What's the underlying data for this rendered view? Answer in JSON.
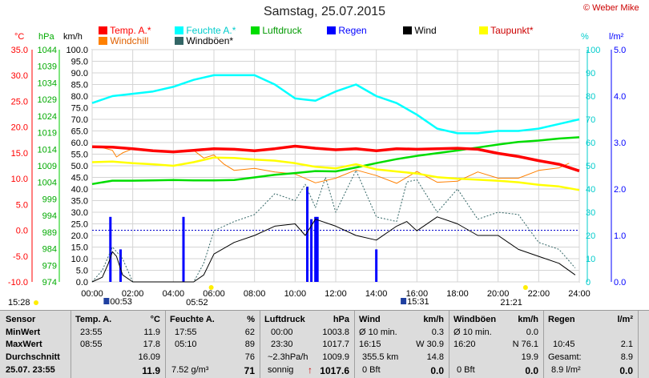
{
  "title": "Samstag, 25.07.2015",
  "copyright": "© Weber Mike",
  "axis_units": {
    "temp": "°C",
    "hpa": "hPa",
    "kmh": "km/h",
    "pct": "%",
    "rain": "l/m²"
  },
  "legend": [
    {
      "label": "Temp. A.*",
      "color": "#ff0000"
    },
    {
      "label": "Feuchte A.*",
      "color": "#00ffff"
    },
    {
      "label": "Luftdruck",
      "color": "#00dd00"
    },
    {
      "label": "Regen",
      "color": "#0000ff"
    },
    {
      "label": "Wind",
      "color": "#000000"
    },
    {
      "label": "Taupunkt*",
      "color": "#ffff00"
    },
    {
      "label": "Windchill",
      "color": "#ff8000"
    },
    {
      "label": "Windböen*",
      "color": "#336666"
    }
  ],
  "sun": {
    "rise_time": "05:52",
    "set_time": "21:21",
    "left_time": "15:28"
  },
  "moon": {
    "rise_time": "00:53",
    "set_time": "15:31"
  },
  "chart_data": {
    "type": "line",
    "x_unit": "time of day",
    "xlim": [
      "00:00",
      "24:00"
    ],
    "x_ticks": [
      "00:00",
      "02:00",
      "04:00",
      "06:00",
      "08:00",
      "10:00",
      "12:00",
      "14:00",
      "16:00",
      "18:00",
      "20:00",
      "22:00",
      "24:00"
    ],
    "axes": {
      "temp": {
        "label": "°C",
        "range": [
          -10,
          35
        ],
        "ticks": [
          "35.0",
          "30.0",
          "25.0",
          "20.0",
          "15.0",
          "10.0",
          "5.0",
          "0.0",
          "-5.0",
          "-10.0"
        ]
      },
      "hpa": {
        "label": "hPa",
        "range": [
          974,
          1044
        ],
        "ticks": [
          "1044",
          "1039",
          "1034",
          "1029",
          "1024",
          "1019",
          "1014",
          "1009",
          "1004",
          "999",
          "994",
          "989",
          "984",
          "979",
          "974"
        ]
      },
      "kmh": {
        "label": "km/h",
        "range": [
          0,
          100
        ],
        "ticks": [
          "100.0",
          "95.0",
          "90.0",
          "85.0",
          "80.0",
          "75.0",
          "70.0",
          "65.0",
          "60.0",
          "55.0",
          "50.0",
          "45.0",
          "40.0",
          "35.0",
          "30.0",
          "25.0",
          "20.0",
          "15.0",
          "10.0",
          "5.0",
          "0.0"
        ]
      },
      "pct": {
        "label": "%",
        "range": [
          0,
          100
        ],
        "ticks": [
          "100",
          "90",
          "80",
          "70",
          "60",
          "50",
          "40",
          "30",
          "20",
          "10",
          "0"
        ]
      },
      "rain": {
        "label": "l/m²",
        "range": [
          0,
          5
        ],
        "ticks": [
          "5.0",
          "4.0",
          "3.0",
          "2.0",
          "1.0",
          "0.0"
        ]
      }
    },
    "series": [
      {
        "name": "Feuchte A.*",
        "axis": "pct",
        "color": "#00ffff",
        "x": [
          0,
          1,
          2,
          3,
          4,
          5,
          6,
          7,
          8,
          9,
          10,
          11,
          12,
          13,
          14,
          15,
          16,
          17,
          18,
          19,
          20,
          21,
          22,
          23,
          24
        ],
        "y": [
          77,
          80,
          81,
          82,
          84,
          87,
          89,
          89,
          89,
          85,
          79,
          78,
          82,
          85,
          80,
          77,
          72,
          66,
          64,
          64,
          65,
          65,
          66,
          68,
          70
        ]
      },
      {
        "name": "Temp. A.*",
        "axis": "temp",
        "color": "#ff0000",
        "x": [
          0,
          1,
          2,
          3,
          4,
          5,
          6,
          7,
          8,
          9,
          10,
          11,
          12,
          13,
          14,
          15,
          16,
          17,
          18,
          19,
          20,
          21,
          22,
          23,
          24
        ],
        "y": [
          16.2,
          16.1,
          15.8,
          15.4,
          15.2,
          15.5,
          15.8,
          15.7,
          15.4,
          15.8,
          16.3,
          15.9,
          15.6,
          15.8,
          15.4,
          15.8,
          15.7,
          15.8,
          15.9,
          15.7,
          14.9,
          14.3,
          13.5,
          12.8,
          11.5
        ]
      },
      {
        "name": "Luftdruck",
        "axis": "hpa",
        "color": "#00dd00",
        "x": [
          0,
          1,
          2,
          3,
          4,
          5,
          6,
          7,
          8,
          9,
          10,
          11,
          12,
          13,
          14,
          15,
          16,
          17,
          18,
          19,
          20,
          21,
          22,
          23,
          24
        ],
        "y": [
          1003.5,
          1004.5,
          1004.5,
          1004.6,
          1004.7,
          1004.6,
          1004.6,
          1004.7,
          1005.5,
          1006.3,
          1006.8,
          1007.4,
          1007.3,
          1008.5,
          1009.8,
          1011.0,
          1012.0,
          1012.8,
          1013.6,
          1014.5,
          1015.4,
          1016.2,
          1016.6,
          1017.2,
          1017.6
        ]
      },
      {
        "name": "Taupunkt*",
        "axis": "temp",
        "color": "#ffff00",
        "x": [
          0,
          1,
          2,
          3,
          4,
          5,
          6,
          7,
          8,
          9,
          10,
          11,
          12,
          13,
          14,
          15,
          16,
          17,
          18,
          19,
          20,
          21,
          22,
          23,
          24
        ],
        "y": [
          13.2,
          13.3,
          13.0,
          12.8,
          12.5,
          13.2,
          14.1,
          14.0,
          13.7,
          13.5,
          13.0,
          12.3,
          12.0,
          12.8,
          11.8,
          11.4,
          11.0,
          10.3,
          10.0,
          9.8,
          9.6,
          9.3,
          8.8,
          8.5,
          7.8
        ]
      },
      {
        "name": "Windchill",
        "axis": "temp",
        "color": "#ff8000",
        "x": [
          0,
          0.5,
          1,
          1.2,
          1.5,
          2,
          3,
          4,
          5,
          5.5,
          6,
          6.5,
          7,
          8,
          9,
          10,
          11,
          12,
          13,
          14,
          15,
          16,
          17,
          18,
          19,
          20,
          21,
          22,
          23,
          23.5
        ],
        "y": [
          16.2,
          16.0,
          15.5,
          14.2,
          15.0,
          15.8,
          15.4,
          15.2,
          15.5,
          14.0,
          14.6,
          12.8,
          11.6,
          12.0,
          11.3,
          10.9,
          9.2,
          10.1,
          11.7,
          10.6,
          9.1,
          11.4,
          9.3,
          9.5,
          11.3,
          10.1,
          10.1,
          11.6,
          12.1,
          13.0
        ]
      },
      {
        "name": "Wind",
        "axis": "kmh",
        "color": "#000000",
        "x": [
          0,
          0.5,
          0.8,
          1,
          1.2,
          1.5,
          2,
          3,
          4,
          5,
          5.5,
          6,
          7,
          8,
          9,
          10,
          10.5,
          11,
          12,
          13,
          14,
          15,
          15.5,
          16,
          17,
          18,
          19,
          20,
          21,
          22,
          23,
          23.8
        ],
        "y": [
          0,
          2,
          8,
          13,
          11,
          3,
          0,
          0,
          0,
          0,
          3,
          12,
          17,
          20,
          24,
          25,
          20,
          27,
          24,
          20,
          18,
          24,
          26,
          22,
          28,
          25,
          20,
          20,
          14,
          11,
          8,
          3
        ]
      },
      {
        "name": "Windböen*",
        "axis": "kmh",
        "color": "#336666",
        "x": [
          0,
          0.5,
          1,
          1.5,
          2,
          3,
          4,
          5,
          5.5,
          6,
          7,
          8,
          9,
          10,
          10.5,
          11,
          11.5,
          12,
          13,
          14,
          15,
          15.5,
          16,
          16.5,
          17,
          18,
          19,
          20,
          21,
          22,
          23,
          23.8
        ],
        "y": [
          0,
          5,
          15,
          10,
          0,
          0,
          0,
          0,
          8,
          22,
          26,
          29,
          38,
          35,
          42,
          32,
          45,
          30,
          48,
          28,
          26,
          43,
          44,
          37,
          30,
          40,
          27,
          30,
          29,
          17,
          14,
          6
        ]
      }
    ],
    "bars": {
      "name": "Regen",
      "axis": "rain",
      "color": "#0000ff",
      "x": [
        0.9,
        1.4,
        4.5,
        10.6,
        10.8,
        11.0,
        11.1,
        14.0
      ],
      "values": [
        1.4,
        0.7,
        1.4,
        2.05,
        1.35,
        1.4,
        1.4,
        0.7
      ]
    }
  },
  "table": {
    "headers": {
      "sensor": "Sensor",
      "temp": "Temp. A.",
      "temp_unit": "°C",
      "hum": "Feuchte A.",
      "hum_unit": "%",
      "press": "Luftdruck",
      "press_unit": "hPa",
      "wind": "Wind",
      "wind_unit": "km/h",
      "gust": "Windböen",
      "gust_unit": "km/h",
      "rain": "Regen",
      "rain_unit": "l/m²"
    },
    "rows": [
      {
        "label": "MinWert",
        "temp_t": "23:55",
        "temp_v": "11.9",
        "hum_t": "17:55",
        "hum_v": "62",
        "press_t": "00:00",
        "press_v": "1003.8",
        "wind_a": "Ø 10 min.",
        "wind_v": "0.3",
        "gust_a": "Ø 10 min.",
        "gust_v": "0.0",
        "rain_a": "",
        "rain_v": ""
      },
      {
        "label": "MaxWert",
        "temp_t": "08:55",
        "temp_v": "17.8",
        "hum_t": "05:10",
        "hum_v": "89",
        "press_t": "23:30",
        "press_v": "1017.7",
        "wind_a": "16:15",
        "wind_v": "W 30.9",
        "gust_a": "16:20",
        "gust_v": "N 76.1",
        "rain_a": "10:45",
        "rain_v": "2.1"
      },
      {
        "label": "Durchschnitt",
        "temp_t": "",
        "temp_v": "16.09",
        "hum_t": "",
        "hum_v": "76",
        "press_t": "~2.3hPa/h",
        "press_v": "1009.9",
        "wind_a": "355.5 km",
        "wind_v": "14.8",
        "gust_a": "",
        "gust_v": "19.9",
        "rain_a": "Gesamt:",
        "rain_v": "8.9"
      },
      {
        "label": "25.07. 23:55",
        "temp_t": "",
        "temp_v": "11.9",
        "hum_t": "7.52 g/m³",
        "hum_v": "71",
        "press_t": "sonnig",
        "press_v": "1017.6",
        "wind_a": "0 Bft",
        "wind_v": "0.0",
        "gust_a": "0 Bft",
        "gust_v": "0.0",
        "rain_a": "8.9 l/m²",
        "rain_v": "0.0"
      }
    ]
  }
}
